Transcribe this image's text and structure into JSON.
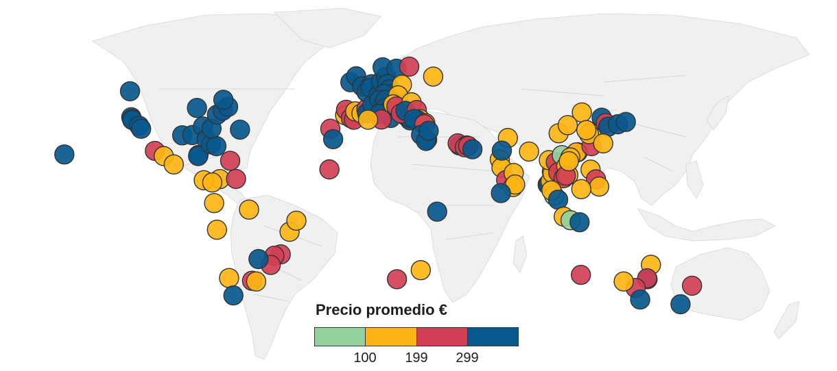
{
  "legend": {
    "title": "Precio promedio €",
    "ticks": [
      "100",
      "199",
      "299"
    ]
  },
  "colors": {
    "lt100": "#93d19e",
    "100-199": "#fdb515",
    "199-299": "#d13f54",
    "gt299": "#08588d",
    "land": "#f0f0f0",
    "border": "#cfcfcf"
  },
  "markers": [
    {
      "lon": -157.9,
      "lat": 21.3,
      "cat": "gt299"
    },
    {
      "lon": -123.1,
      "lat": 49.3,
      "cat": "gt299"
    },
    {
      "lon": -122.4,
      "lat": 37.8,
      "cat": "gt299"
    },
    {
      "lon": -122.0,
      "lat": 36.9,
      "cat": "gt299"
    },
    {
      "lon": -121.9,
      "lat": 36.6,
      "cat": "gt299"
    },
    {
      "lon": -118.2,
      "lat": 34.0,
      "cat": "gt299"
    },
    {
      "lon": -117.2,
      "lat": 32.7,
      "cat": "gt299"
    },
    {
      "lon": -109.9,
      "lat": 22.9,
      "cat": "199-299"
    },
    {
      "lon": -105.2,
      "lat": 20.6,
      "cat": "100-199"
    },
    {
      "lon": -99.9,
      "lat": 16.9,
      "cat": "100-199"
    },
    {
      "lon": -86.8,
      "lat": 21.1,
      "cat": "gt299"
    },
    {
      "lon": -87.0,
      "lat": 20.6,
      "cat": "gt299"
    },
    {
      "lon": -95.4,
      "lat": 29.8,
      "cat": "gt299"
    },
    {
      "lon": -90.1,
      "lat": 29.9,
      "cat": "gt299"
    },
    {
      "lon": -87.6,
      "lat": 41.9,
      "cat": "gt299"
    },
    {
      "lon": -84.4,
      "lat": 33.7,
      "cat": "gt299"
    },
    {
      "lon": -82.5,
      "lat": 27.9,
      "cat": "gt299"
    },
    {
      "lon": -80.2,
      "lat": 25.8,
      "cat": "gt299"
    },
    {
      "lon": -77.3,
      "lat": 25.0,
      "cat": "gt299"
    },
    {
      "lon": -79.9,
      "lat": 32.8,
      "cat": "gt299"
    },
    {
      "lon": -77.0,
      "lat": 38.9,
      "cat": "gt299"
    },
    {
      "lon": -74.0,
      "lat": 40.7,
      "cat": "gt299"
    },
    {
      "lon": -71.1,
      "lat": 42.4,
      "cat": "gt299"
    },
    {
      "lon": -73.6,
      "lat": 45.5,
      "cat": "gt299"
    },
    {
      "lon": -64.8,
      "lat": 32.3,
      "cat": "gt299"
    },
    {
      "lon": -70.0,
      "lat": 18.5,
      "cat": "199-299"
    },
    {
      "lon": -75.5,
      "lat": 10.4,
      "cat": "100-199"
    },
    {
      "lon": -84.0,
      "lat": 9.9,
      "cat": "100-199"
    },
    {
      "lon": -79.5,
      "lat": 8.9,
      "cat": "100-199"
    },
    {
      "lon": -66.9,
      "lat": 10.5,
      "cat": "199-299"
    },
    {
      "lon": -78.5,
      "lat": -0.2,
      "cat": "100-199"
    },
    {
      "lon": -77.0,
      "lat": -12.0,
      "cat": "100-199"
    },
    {
      "lon": -60.0,
      "lat": -3.1,
      "cat": "100-199"
    },
    {
      "lon": -38.5,
      "lat": -12.9,
      "cat": "100-199"
    },
    {
      "lon": -34.9,
      "lat": -8.0,
      "cat": "100-199"
    },
    {
      "lon": -43.2,
      "lat": -22.9,
      "cat": "199-299"
    },
    {
      "lon": -46.6,
      "lat": -23.5,
      "cat": "199-299"
    },
    {
      "lon": -48.5,
      "lat": -27.6,
      "cat": "199-299"
    },
    {
      "lon": -55.0,
      "lat": -25.0,
      "cat": "gt299"
    },
    {
      "lon": -70.6,
      "lat": -33.4,
      "cat": "100-199"
    },
    {
      "lon": -58.4,
      "lat": -34.6,
      "cat": "199-299"
    },
    {
      "lon": -56.2,
      "lat": -34.9,
      "cat": "100-199"
    },
    {
      "lon": -68.3,
      "lat": -41.1,
      "cat": "gt299"
    },
    {
      "lon": -16.9,
      "lat": 32.7,
      "cat": "199-299"
    },
    {
      "lon": -15.4,
      "lat": 28.1,
      "cat": "gt299"
    },
    {
      "lon": -17.4,
      "lat": 14.7,
      "cat": "199-299"
    },
    {
      "lon": -9.1,
      "lat": 38.7,
      "cat": "100-199"
    },
    {
      "lon": -8.6,
      "lat": 41.1,
      "cat": "199-299"
    },
    {
      "lon": -6.0,
      "lat": 37.4,
      "cat": "199-299"
    },
    {
      "lon": -4.4,
      "lat": 36.7,
      "cat": "199-299"
    },
    {
      "lon": -3.7,
      "lat": 40.4,
      "cat": "100-199"
    },
    {
      "lon": -0.4,
      "lat": 39.5,
      "cat": "100-199"
    },
    {
      "lon": 2.2,
      "lat": 41.4,
      "cat": "199-299"
    },
    {
      "lon": 2.6,
      "lat": 39.6,
      "cat": "gt299"
    },
    {
      "lon": -6.3,
      "lat": 53.3,
      "cat": "gt299"
    },
    {
      "lon": -3.2,
      "lat": 55.9,
      "cat": "gt299"
    },
    {
      "lon": -0.1,
      "lat": 51.5,
      "cat": "gt299"
    },
    {
      "lon": 2.3,
      "lat": 48.9,
      "cat": "gt299"
    },
    {
      "lon": 4.9,
      "lat": 52.4,
      "cat": "gt299"
    },
    {
      "lon": 4.4,
      "lat": 50.8,
      "cat": "gt299"
    },
    {
      "lon": 7.3,
      "lat": 43.7,
      "cat": "gt299"
    },
    {
      "lon": 5.4,
      "lat": 43.3,
      "cat": "gt299"
    },
    {
      "lon": 8.5,
      "lat": 47.4,
      "cat": "gt299"
    },
    {
      "lon": 10.0,
      "lat": 53.6,
      "cat": "gt299"
    },
    {
      "lon": 12.6,
      "lat": 55.7,
      "cat": "gt299"
    },
    {
      "lon": 10.8,
      "lat": 59.9,
      "cat": "gt299"
    },
    {
      "lon": 18.1,
      "lat": 59.3,
      "cat": "gt299"
    },
    {
      "lon": 13.4,
      "lat": 52.5,
      "cat": "gt299"
    },
    {
      "lon": 14.4,
      "lat": 50.1,
      "cat": "gt299"
    },
    {
      "lon": 16.4,
      "lat": 48.2,
      "cat": "gt299"
    },
    {
      "lon": 11.6,
      "lat": 48.1,
      "cat": "gt299"
    },
    {
      "lon": 9.2,
      "lat": 45.5,
      "cat": "gt299"
    },
    {
      "lon": 11.3,
      "lat": 43.8,
      "cat": "gt299"
    },
    {
      "lon": 12.3,
      "lat": 45.4,
      "cat": "gt299"
    },
    {
      "lon": 12.5,
      "lat": 41.9,
      "cat": "gt299"
    },
    {
      "lon": 14.3,
      "lat": 40.9,
      "cat": "gt299"
    },
    {
      "lon": 9.1,
      "lat": 39.2,
      "cat": "gt299"
    },
    {
      "lon": 15.1,
      "lat": 37.5,
      "cat": "gt299"
    },
    {
      "lon": 24.9,
      "lat": 60.2,
      "cat": "199-299"
    },
    {
      "lon": 21.0,
      "lat": 52.2,
      "cat": "100-199"
    },
    {
      "lon": 19.0,
      "lat": 47.5,
      "cat": "100-199"
    },
    {
      "lon": 16.4,
      "lat": 43.5,
      "cat": "100-199"
    },
    {
      "lon": 18.1,
      "lat": 42.6,
      "cat": "199-299"
    },
    {
      "lon": 26.1,
      "lat": 44.4,
      "cat": "100-199"
    },
    {
      "lon": 10.2,
      "lat": 36.8,
      "cat": "199-299"
    },
    {
      "lon": 3.1,
      "lat": 36.7,
      "cat": "100-199"
    },
    {
      "lon": 23.7,
      "lat": 38.0,
      "cat": "gt299"
    },
    {
      "lon": 25.4,
      "lat": 36.4,
      "cat": "gt299"
    },
    {
      "lon": 25.3,
      "lat": 37.4,
      "cat": "gt299"
    },
    {
      "lon": 20.5,
      "lat": 39.5,
      "cat": "199-299"
    },
    {
      "lon": 22.9,
      "lat": 40.6,
      "cat": "gt299"
    },
    {
      "lon": 28.9,
      "lat": 41.0,
      "cat": "199-299"
    },
    {
      "lon": 30.7,
      "lat": 36.9,
      "cat": "100-199"
    },
    {
      "lon": 29.1,
      "lat": 36.6,
      "cat": "gt299"
    },
    {
      "lon": 27.4,
      "lat": 37.0,
      "cat": "gt299"
    },
    {
      "lon": 33.4,
      "lat": 35.2,
      "cat": "100-199"
    },
    {
      "lon": 32.9,
      "lat": 34.7,
      "cat": "199-299"
    },
    {
      "lon": 37.6,
      "lat": 55.8,
      "cat": "100-199"
    },
    {
      "lon": 31.2,
      "lat": 30.0,
      "cat": "gt299"
    },
    {
      "lon": 34.4,
      "lat": 27.9,
      "cat": "gt299"
    },
    {
      "lon": 33.8,
      "lat": 27.3,
      "cat": "gt299"
    },
    {
      "lon": 35.2,
      "lat": 31.8,
      "cat": "gt299"
    },
    {
      "lon": 51.5,
      "lat": 25.3,
      "cat": "gt299"
    },
    {
      "lon": 50.6,
      "lat": 26.2,
      "cat": "199-299"
    },
    {
      "lon": 55.3,
      "lat": 25.3,
      "cat": "gt299"
    },
    {
      "lon": 54.4,
      "lat": 24.5,
      "cat": "199-299"
    },
    {
      "lon": 56.2,
      "lat": 25.1,
      "cat": "199-299"
    },
    {
      "lon": 58.4,
      "lat": 23.6,
      "cat": "gt299"
    },
    {
      "lon": 39.7,
      "lat": -4.0,
      "cat": "gt299"
    },
    {
      "lon": 31.0,
      "lat": -29.9,
      "cat": "100-199"
    },
    {
      "lon": 18.4,
      "lat": -33.9,
      "cat": "199-299"
    },
    {
      "lon": 72.9,
      "lat": 19.1,
      "cat": "100-199"
    },
    {
      "lon": 73.8,
      "lat": 15.5,
      "cat": "100-199"
    },
    {
      "lon": 77.2,
      "lat": 28.6,
      "cat": "100-199"
    },
    {
      "lon": 76.3,
      "lat": 10.0,
      "cat": "199-299"
    },
    {
      "lon": 80.3,
      "lat": 13.1,
      "cat": "100-199"
    },
    {
      "lon": 79.9,
      "lat": 6.9,
      "cat": "100-199"
    },
    {
      "lon": 81.0,
      "lat": 8.0,
      "cat": "100-199"
    },
    {
      "lon": 88.4,
      "lat": 22.6,
      "cat": "100-199"
    },
    {
      "lon": 73.5,
      "lat": 4.2,
      "cat": "gt299"
    },
    {
      "lon": 74.0,
      "lat": 23.0,
      "cat": "gt299"
    },
    {
      "lon": 100.5,
      "lat": 13.8,
      "cat": "100-199"
    },
    {
      "lon": 98.3,
      "lat": 7.9,
      "cat": "gt299"
    },
    {
      "lon": 98.9,
      "lat": 8.4,
      "cat": "gt299"
    },
    {
      "lon": 99.8,
      "lat": 9.5,
      "cat": "100-199"
    },
    {
      "lon": 100.9,
      "lat": 12.9,
      "cat": "100-199"
    },
    {
      "lon": 98.9,
      "lat": 18.8,
      "cat": "100-199"
    },
    {
      "lon": 102.6,
      "lat": 17.9,
      "cat": "199-299"
    },
    {
      "lon": 103.9,
      "lat": 13.4,
      "cat": "199-299"
    },
    {
      "lon": 105.8,
      "lat": 21.0,
      "cat": "lt100"
    },
    {
      "lon": 106.7,
      "lat": 10.8,
      "cat": "199-299"
    },
    {
      "lon": 108.2,
      "lat": 16.1,
      "cat": "100-199"
    },
    {
      "lon": 109.2,
      "lat": 12.2,
      "cat": "100-199"
    },
    {
      "lon": 107.9,
      "lat": 11.9,
      "cat": "199-299"
    },
    {
      "lon": 101.7,
      "lat": 3.1,
      "cat": "lt100"
    },
    {
      "lon": 100.3,
      "lat": 5.4,
      "cat": "100-199"
    },
    {
      "lon": 103.8,
      "lat": 1.3,
      "cat": "gt299"
    },
    {
      "lon": 106.8,
      "lat": -6.2,
      "cat": "100-199"
    },
    {
      "lon": 110.4,
      "lat": -7.8,
      "cat": "lt100"
    },
    {
      "lon": 115.2,
      "lat": -8.7,
      "cat": "gt299"
    },
    {
      "lon": 114.2,
      "lat": 22.3,
      "cat": "199-299"
    },
    {
      "lon": 113.5,
      "lat": 22.2,
      "cat": "100-199"
    },
    {
      "lon": 110.3,
      "lat": 20.0,
      "cat": "100-199"
    },
    {
      "lon": 109.5,
      "lat": 18.3,
      "cat": "100-199"
    },
    {
      "lon": 121.5,
      "lat": 25.0,
      "cat": "199-299"
    },
    {
      "lon": 121.5,
      "lat": 31.2,
      "cat": "100-199"
    },
    {
      "lon": 120.2,
      "lat": 30.3,
      "cat": "100-199"
    },
    {
      "lon": 116.4,
      "lat": 39.9,
      "cat": "100-199"
    },
    {
      "lon": 118.8,
      "lat": 32.1,
      "cat": "100-199"
    },
    {
      "lon": 104.1,
      "lat": 30.7,
      "cat": "100-199"
    },
    {
      "lon": 108.9,
      "lat": 34.3,
      "cat": "100-199"
    },
    {
      "lon": 126.9,
      "lat": 37.6,
      "cat": "gt299"
    },
    {
      "lon": 129.1,
      "lat": 35.2,
      "cat": "199-299"
    },
    {
      "lon": 130.4,
      "lat": 33.6,
      "cat": "gt299"
    },
    {
      "lon": 135.5,
      "lat": 34.7,
      "cat": "gt299"
    },
    {
      "lon": 139.7,
      "lat": 35.7,
      "cat": "gt299"
    },
    {
      "lon": 127.7,
      "lat": 26.2,
      "cat": "100-199"
    },
    {
      "lon": 121.0,
      "lat": 14.6,
      "cat": "100-199"
    },
    {
      "lon": 123.9,
      "lat": 10.3,
      "cat": "199-299"
    },
    {
      "lon": 125.6,
      "lat": 7.1,
      "cat": "100-199"
    },
    {
      "lon": 116.1,
      "lat": 5.98,
      "cat": "100-199"
    },
    {
      "lon": 153.0,
      "lat": -27.5,
      "cat": "100-199"
    },
    {
      "lon": 151.2,
      "lat": -33.9,
      "cat": "gt299"
    },
    {
      "lon": 151.0,
      "lat": -33.5,
      "cat": "199-299"
    },
    {
      "lon": 144.9,
      "lat": -37.8,
      "cat": "199-299"
    },
    {
      "lon": 138.6,
      "lat": -34.9,
      "cat": "100-199"
    },
    {
      "lon": 115.9,
      "lat": -32.0,
      "cat": "199-299"
    },
    {
      "lon": 174.8,
      "lat": -36.8,
      "cat": "199-299"
    },
    {
      "lon": 168.7,
      "lat": -45.0,
      "cat": "gt299"
    },
    {
      "lon": 147.3,
      "lat": -42.9,
      "cat": "gt299"
    }
  ]
}
